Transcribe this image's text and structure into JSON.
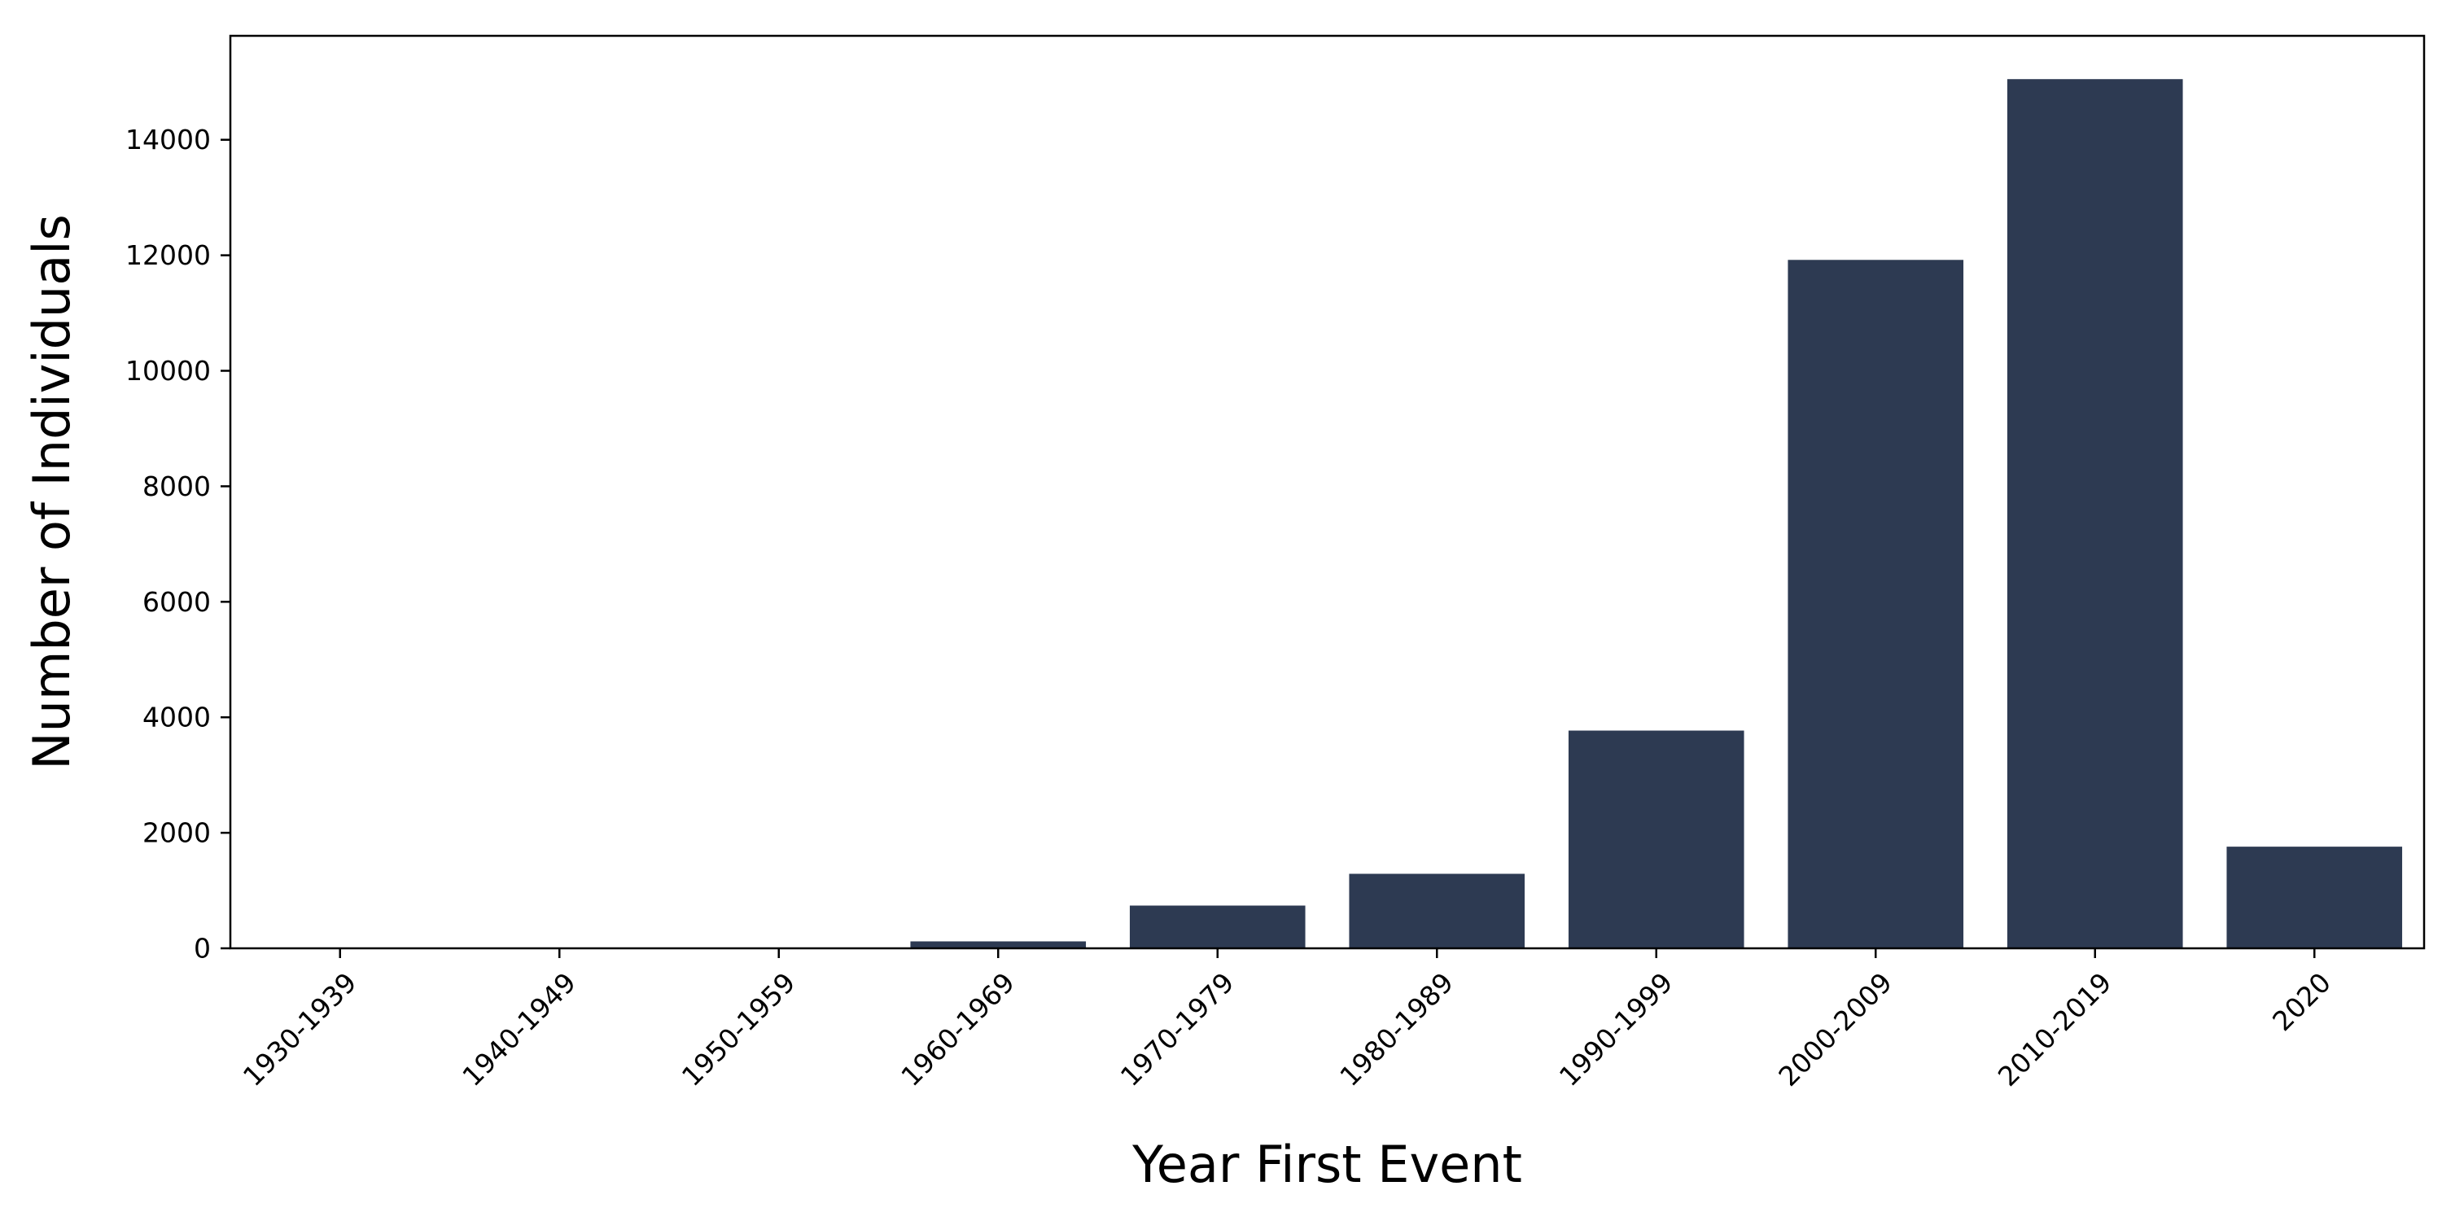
{
  "chart_data": {
    "type": "bar",
    "title": "",
    "xlabel": "Year First Event",
    "ylabel": "Number of Individuals",
    "categories": [
      "1930-1939",
      "1940-1949",
      "1950-1959",
      "1960-1969",
      "1970-1979",
      "1980-1989",
      "1990-1999",
      "2000-2009",
      "2010-2019",
      "2020"
    ],
    "values": [
      3,
      5,
      8,
      120,
      740,
      1290,
      3770,
      11920,
      15050,
      1760
    ],
    "ylim": [
      0,
      15800
    ],
    "yticks": [
      0,
      2000,
      4000,
      6000,
      8000,
      10000,
      12000,
      14000
    ],
    "ytick_labels": [
      "0",
      "2000",
      "4000",
      "6000",
      "8000",
      "10000",
      "12000",
      "14000"
    ],
    "grid": false,
    "legend": "none",
    "bar_color": "#2d3a52"
  }
}
